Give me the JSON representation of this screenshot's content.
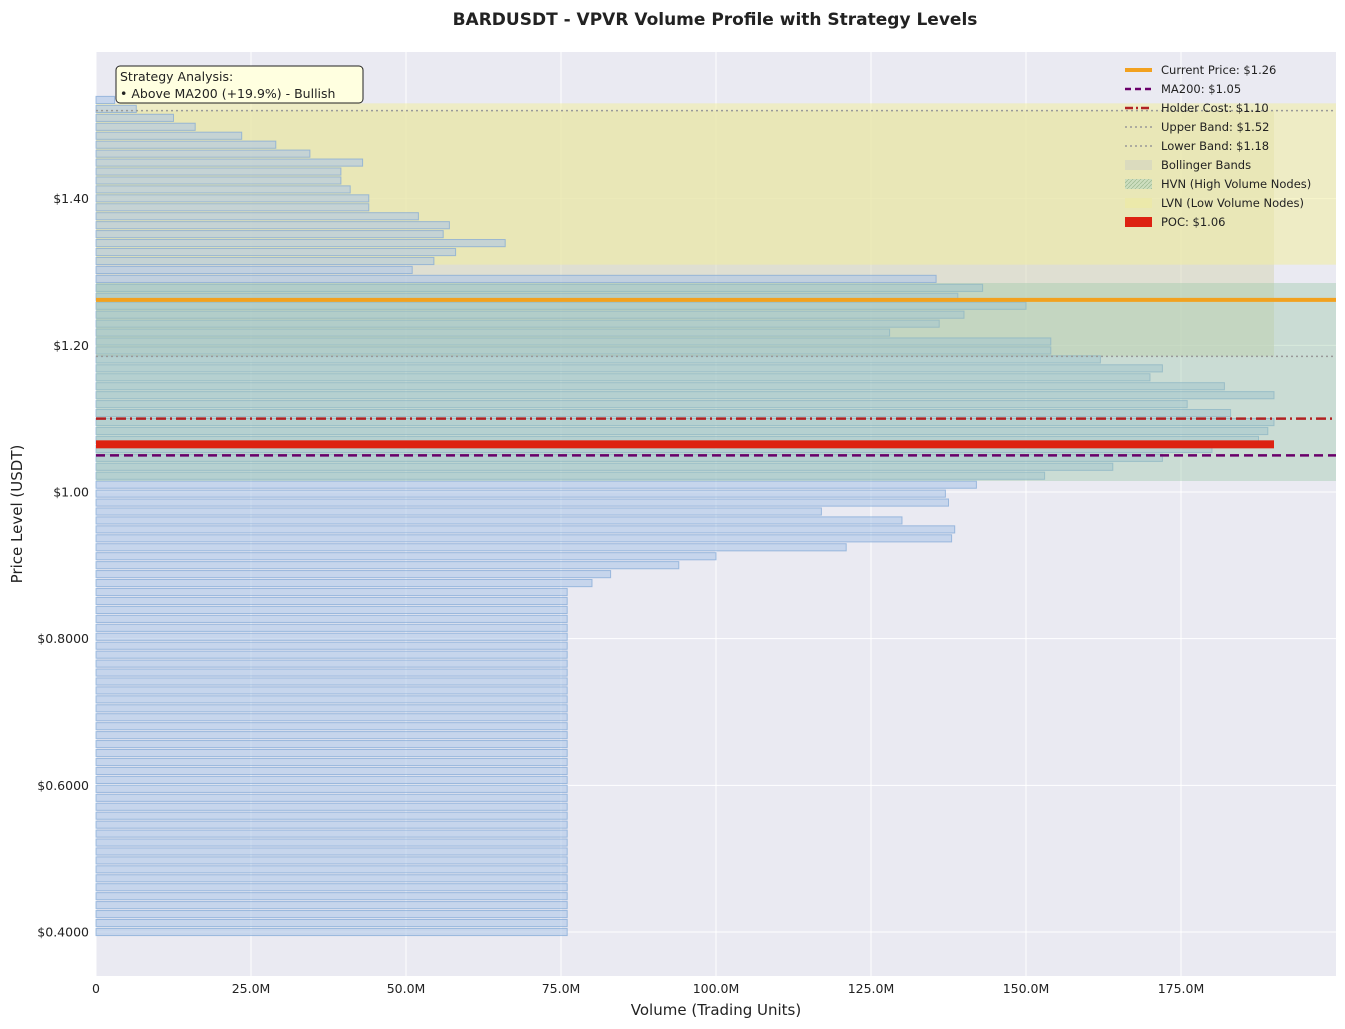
{
  "chart_data": {
    "type": "bar",
    "orientation": "horizontal",
    "title": "BARDUSDT - VPVR Volume Profile with Strategy Levels",
    "xlabel": "Volume (Trading Units)",
    "ylabel": "Price Level (USDT)",
    "xlim": [
      0,
      200
    ],
    "ylim": [
      0.34,
      1.6
    ],
    "x_ticks": [
      0,
      25,
      50,
      75,
      100,
      125,
      150,
      175
    ],
    "x_tick_labels": [
      "0",
      "25.0M",
      "50.0M",
      "75.0M",
      "100.0M",
      "125.0M",
      "150.0M",
      "175.0M"
    ],
    "y_ticks": [
      0.4,
      0.6,
      0.8,
      1.0,
      1.2,
      1.4
    ],
    "y_tick_labels": [
      "$0.4000",
      "$0.6000",
      "$0.8000",
      "$1.00",
      "$1.20",
      "$1.40"
    ],
    "grid": true,
    "legend_position": "top-right",
    "bar_unit": "M",
    "price_levels": [
      0.4,
      0.4122,
      0.4244,
      0.4366,
      0.4488,
      0.461,
      0.4732,
      0.4854,
      0.4976,
      0.5098,
      0.522,
      0.5342,
      0.5464,
      0.5586,
      0.5708,
      0.583,
      0.5952,
      0.6074,
      0.6196,
      0.6318,
      0.644,
      0.6562,
      0.6684,
      0.6806,
      0.6928,
      0.705,
      0.7172,
      0.7294,
      0.7416,
      0.7538,
      0.766,
      0.7782,
      0.7904,
      0.8026,
      0.8148,
      0.827,
      0.8392,
      0.8514,
      0.8636,
      0.8758,
      0.888,
      0.9002,
      0.9124,
      0.9246,
      0.9368,
      0.949,
      0.9612,
      0.9734,
      0.9856,
      0.9978,
      1.01,
      1.0222,
      1.0344,
      1.0466,
      1.0588,
      1.071,
      1.0832,
      1.0954,
      1.1076,
      1.1198,
      1.132,
      1.1442,
      1.1564,
      1.1686,
      1.1808,
      1.193,
      1.2052,
      1.2174,
      1.2296,
      1.2418,
      1.254,
      1.2662,
      1.2784,
      1.2906,
      1.3028,
      1.315,
      1.3272,
      1.3394,
      1.3516,
      1.3638,
      1.376,
      1.3882,
      1.4004,
      1.4126,
      1.4248,
      1.437,
      1.4492,
      1.4614,
      1.4736,
      1.4858,
      1.498,
      1.5102,
      1.5224,
      1.5346
    ],
    "volumes": [
      76,
      76,
      76,
      76,
      76,
      76,
      76,
      76,
      76,
      76,
      76,
      76,
      76,
      76,
      76,
      76,
      76,
      76,
      76,
      76,
      76,
      76,
      76,
      76,
      76,
      76,
      76,
      76,
      76,
      76,
      76,
      76,
      76,
      76,
      76,
      76,
      76,
      76,
      76,
      80,
      83,
      94,
      100,
      121,
      138,
      138.5,
      130,
      117,
      137.5,
      137,
      142,
      153,
      164,
      172,
      180,
      187.5,
      189,
      190,
      183,
      176,
      190,
      182,
      170,
      172,
      162,
      154,
      154,
      128,
      136,
      140,
      150,
      139,
      143,
      135.5,
      51,
      54.5,
      58,
      66,
      56,
      57,
      52,
      44,
      44,
      41,
      39.5,
      39.5,
      43,
      34.5,
      29,
      23.5,
      16,
      12.5,
      6.5,
      3
    ],
    "hvn_range": [
      1.015,
      1.285
    ],
    "lvn_range": [
      1.31,
      1.53
    ],
    "bollinger_bands": {
      "upper": 1.52,
      "lower": 1.185
    },
    "reference_lines": [
      {
        "label": "Current Price: $1.26",
        "value": 1.262,
        "color": "#f2a11f",
        "style": "solid"
      },
      {
        "label": "MA200: $1.05",
        "value": 1.05,
        "color": "#6a006a",
        "style": "dashed"
      },
      {
        "label": "Holder Cost: $1.10",
        "value": 1.1,
        "color": "#b22222",
        "style": "dashdot"
      },
      {
        "label": "Upper Band: $1.52",
        "value": 1.52,
        "color": "#999999",
        "style": "dotted"
      },
      {
        "label": "Lower Band: $1.18",
        "value": 1.185,
        "color": "#999999",
        "style": "dotted"
      }
    ],
    "poc": {
      "label": "POC: $1.06",
      "value": 1.065,
      "volume": 190,
      "color": "#dd2211"
    },
    "legend": [
      {
        "label": "Current Price: $1.26",
        "kind": "solid",
        "color": "#f2a11f"
      },
      {
        "label": "MA200: $1.05",
        "kind": "dashed",
        "color": "#6a006a"
      },
      {
        "label": "Holder Cost: $1.10",
        "kind": "dashdot",
        "color": "#b22222"
      },
      {
        "label": "Upper Band: $1.52",
        "kind": "dotted",
        "color": "#999999"
      },
      {
        "label": "Lower Band: $1.18",
        "kind": "dotted",
        "color": "#999999"
      },
      {
        "label": "Bollinger Bands",
        "kind": "patch",
        "color": "#d8d8c0"
      },
      {
        "label": "HVN (High Volume Nodes)",
        "kind": "hatch",
        "color": "#b8d4b0"
      },
      {
        "label": "LVN (Low Volume Nodes)",
        "kind": "patch",
        "color": "#ece9a8"
      },
      {
        "label": "POC: $1.06",
        "kind": "bar",
        "color": "#dd2211"
      }
    ],
    "annotation": {
      "title": "Strategy Analysis:",
      "line": "• Above MA200 (+19.9%) - Bullish"
    },
    "colors": {
      "plot_background": "#eaeaf2",
      "bar_fill": "#aec7e8",
      "bar_edge": "#7fa6d6",
      "hvn_fill": "#9cc8a8",
      "lvn_fill": "#f0eda0",
      "bollinger_fill": "#d6d6b8",
      "annotation_fill": "#ffffe0"
    }
  }
}
